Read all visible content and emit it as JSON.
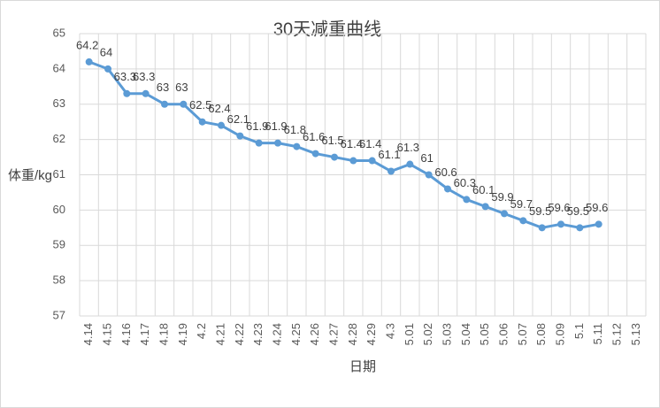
{
  "chart_data": {
    "type": "line",
    "title": "30天减重曲线",
    "y_label": "体重/kg",
    "x_label": "日期",
    "categories": [
      "4.14",
      "4.15",
      "4.16",
      "4.17",
      "4.18",
      "4.19",
      "4.2",
      "4.21",
      "4.22",
      "4.23",
      "4.24",
      "4.25",
      "4.26",
      "4.27",
      "4.28",
      "4.29",
      "4.3",
      "5.01",
      "5.02",
      "5.03",
      "5.04",
      "5.05",
      "5.06",
      "5.07",
      "5.08",
      "5.09",
      "5.1",
      "5.11",
      "5.12",
      "5.13"
    ],
    "series": [
      {
        "name": "体重",
        "color": "#5b9bd5",
        "values": [
          64.2,
          64,
          63.3,
          63.3,
          63,
          63,
          62.5,
          62.4,
          62.1,
          61.9,
          61.9,
          61.8,
          61.6,
          61.5,
          61.4,
          61.4,
          61.1,
          61.3,
          61,
          60.6,
          60.3,
          60.1,
          59.9,
          59.7,
          59.5,
          59.6,
          59.5,
          59.6,
          null,
          null
        ]
      }
    ],
    "ylim": [
      57,
      65
    ],
    "yticks": [
      57,
      58,
      59,
      60,
      61,
      62,
      63,
      64,
      65
    ],
    "grid": true
  }
}
